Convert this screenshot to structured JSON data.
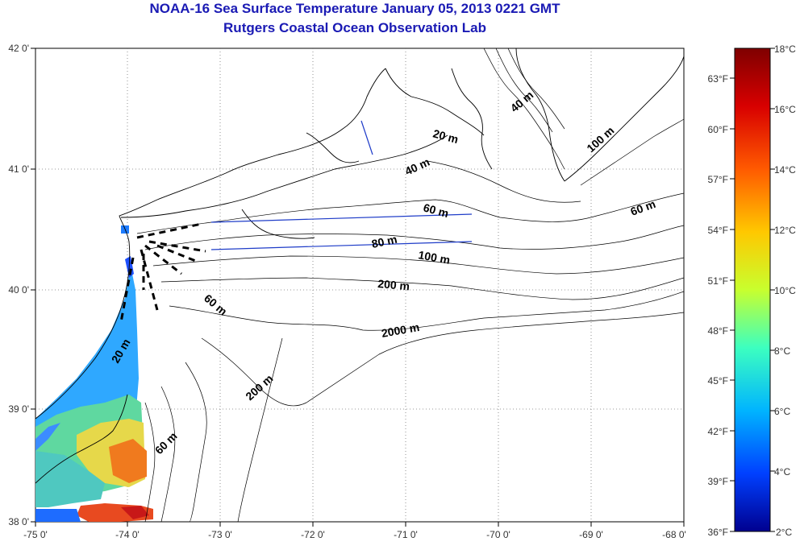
{
  "header": {
    "title": "NOAA-16 Sea Surface Temperature January 05, 2013 0221 GMT",
    "subtitle": "Rutgers Coastal Ocean Observation Lab"
  },
  "map": {
    "lon_ticks": [
      "-75 0'",
      "-74 0'",
      "-73 0'",
      "-72 0'",
      "-71 0'",
      "-70 0'",
      "-69 0'",
      "-68 0'"
    ],
    "lat_ticks": [
      "42 0'",
      "41 0'",
      "40 0'",
      "39 0'",
      "38 0'"
    ],
    "lon_range": [
      -75,
      -68
    ],
    "lat_range": [
      38,
      42
    ],
    "contour_labels": [
      {
        "text": "40 m"
      },
      {
        "text": "20 m"
      },
      {
        "text": "100 m"
      },
      {
        "text": "40 m"
      },
      {
        "text": "60 m"
      },
      {
        "text": "60 m"
      },
      {
        "text": "80 m"
      },
      {
        "text": "100 m"
      },
      {
        "text": "200 m"
      },
      {
        "text": "60 m"
      },
      {
        "text": "2000 m"
      },
      {
        "text": "20 m"
      },
      {
        "text": "200 m"
      },
      {
        "text": "60 m"
      }
    ]
  },
  "colorbar": {
    "celsius_labels": [
      "18°C",
      "16°C",
      "14°C",
      "12°C",
      "10°C",
      "8°C",
      "6°C",
      "4°C",
      "2°C"
    ],
    "fahrenheit_labels": [
      "63°F",
      "60°F",
      "57°F",
      "54°F",
      "51°F",
      "48°F",
      "45°F",
      "42°F",
      "39°F",
      "36°F"
    ],
    "range_c": [
      2,
      18
    ],
    "colors": [
      "#7f0000",
      "#d80000",
      "#ff5a00",
      "#ffc800",
      "#c8ff2e",
      "#3cffc0",
      "#00b4ff",
      "#0040ff",
      "#00008f"
    ]
  },
  "colors": {
    "title": "#1a1ab4",
    "transect": "#1e3cc8",
    "coast": "#000000"
  }
}
